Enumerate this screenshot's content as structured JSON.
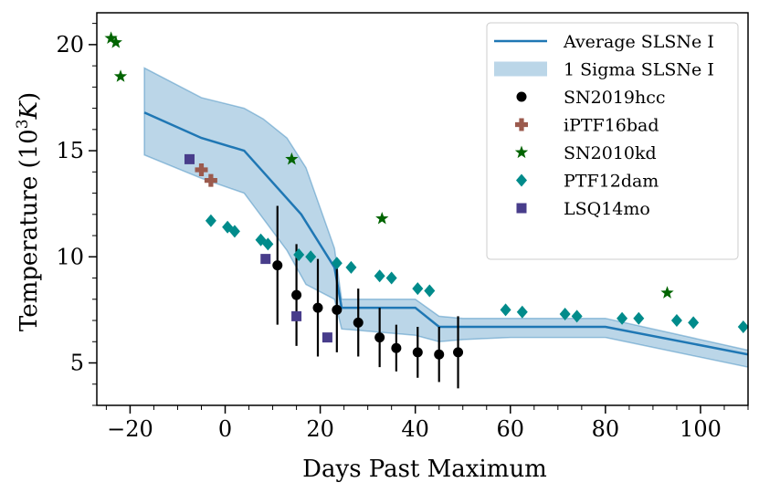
{
  "chart_data": {
    "type": "scatter",
    "xlabel": "Days Past Maximum",
    "ylabel": "Temperature (10",
    "ylabel_sup": "3",
    "ylabel_unit": "K",
    "ylabel_close": ")",
    "xlim": [
      -27,
      110
    ],
    "ylim": [
      3,
      21.5
    ],
    "xticks": [
      -20,
      0,
      20,
      40,
      60,
      80,
      100
    ],
    "xtick_labels": [
      "−20",
      "0",
      "20",
      "40",
      "60",
      "80",
      "100"
    ],
    "yticks": [
      5,
      10,
      15,
      20
    ],
    "ytick_labels": [
      "5",
      "10",
      "15",
      "20"
    ],
    "legend_position": "top-right",
    "average": {
      "name": "Average SLSNe I",
      "color": "#1f77b4",
      "x": [
        -17,
        -5,
        4,
        8,
        16,
        23,
        24.5,
        40,
        45,
        50,
        60,
        80,
        110
      ],
      "y": [
        16.8,
        15.6,
        15.0,
        14.0,
        12.0,
        9.5,
        7.6,
        7.6,
        6.7,
        6.7,
        6.7,
        6.7,
        5.4
      ]
    },
    "sigma": {
      "name": "1 Sigma SLSNe I",
      "color": "#1f77b4",
      "x": [
        -17,
        -5,
        4,
        8,
        13,
        17,
        23,
        24.5,
        40,
        45,
        50,
        60,
        80,
        110
      ],
      "upper": [
        18.9,
        17.5,
        17.0,
        16.5,
        15.6,
        14.2,
        10.4,
        8.0,
        8.0,
        7.2,
        7.1,
        7.1,
        7.1,
        5.6
      ],
      "lower": [
        14.8,
        13.7,
        13.0,
        11.8,
        10.3,
        8.7,
        8.0,
        6.6,
        6.3,
        6.0,
        6.1,
        6.2,
        6.2,
        4.8
      ]
    },
    "series": [
      {
        "name": "SN2019hcc",
        "color": "#000000",
        "marker": "circle",
        "x": [
          11,
          15,
          19.5,
          23.5,
          28,
          32.5,
          36,
          40.5,
          45,
          49
        ],
        "y": [
          9.6,
          8.2,
          7.6,
          7.5,
          6.9,
          6.2,
          5.7,
          5.5,
          5.4,
          5.5
        ],
        "err": [
          2.8,
          2.4,
          2.3,
          2.0,
          1.6,
          1.4,
          1.1,
          1.2,
          1.3,
          1.7
        ]
      },
      {
        "name": "iPTF16bad",
        "color": "#9b5a4d",
        "marker": "plus",
        "x": [
          -5,
          -3
        ],
        "y": [
          14.1,
          13.6
        ]
      },
      {
        "name": "SN2010kd",
        "color": "#006400",
        "marker": "star",
        "x": [
          -24,
          -23,
          -22,
          14,
          33,
          93
        ],
        "y": [
          20.3,
          20.1,
          18.5,
          14.6,
          11.8,
          8.3
        ]
      },
      {
        "name": "PTF12dam",
        "color": "#008b8b",
        "marker": "diamond",
        "x": [
          -3,
          0.5,
          2,
          7.5,
          9,
          15.5,
          18,
          23.5,
          26.5,
          32.5,
          35,
          40.5,
          43,
          59,
          62.5,
          71.5,
          74,
          83.5,
          87,
          95,
          98.5,
          109
        ],
        "y": [
          11.7,
          11.4,
          11.2,
          10.8,
          10.6,
          10.1,
          10.0,
          9.7,
          9.5,
          9.1,
          9.0,
          8.5,
          8.4,
          7.5,
          7.4,
          7.3,
          7.2,
          7.1,
          7.1,
          7.0,
          6.9,
          6.7
        ]
      },
      {
        "name": "LSQ14mo",
        "color": "#483d8b",
        "marker": "square",
        "x": [
          -7.5,
          8.5,
          15,
          21.5
        ],
        "y": [
          14.6,
          9.9,
          7.2,
          6.2
        ]
      }
    ]
  }
}
